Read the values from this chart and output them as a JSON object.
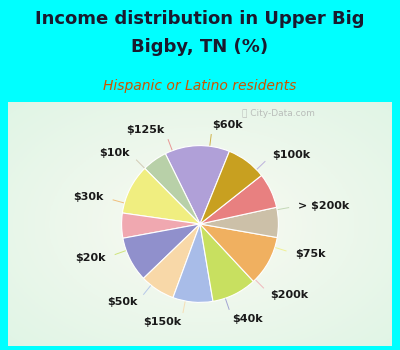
{
  "title_line1": "Income distribution in Upper Big",
  "title_line2": "Bigby, TN (%)",
  "subtitle": "Hispanic or Latino residents",
  "title_color": "#1a1a2e",
  "subtitle_color": "#cc5500",
  "bg_top": "#00FFFF",
  "watermark": "ⓘ City-Data.com",
  "labels": [
    "$100k",
    "> $200k",
    "$75k",
    "$200k",
    "$40k",
    "$150k",
    "$50k",
    "$20k",
    "$30k",
    "$10k",
    "$125k",
    "$60k"
  ],
  "sizes": [
    13,
    5,
    10,
    5,
    9,
    7,
    8,
    9,
    10,
    6,
    7,
    8
  ],
  "colors": [
    "#b0a0d8",
    "#b8d0a8",
    "#f0ee80",
    "#f0a8b0",
    "#9090cc",
    "#f8d8a8",
    "#a8bce8",
    "#c8e060",
    "#f0b060",
    "#ccc0a8",
    "#e88080",
    "#c8a020"
  ],
  "startangle": 68,
  "title_fontsize": 13,
  "subtitle_fontsize": 10,
  "label_fontsize": 8
}
